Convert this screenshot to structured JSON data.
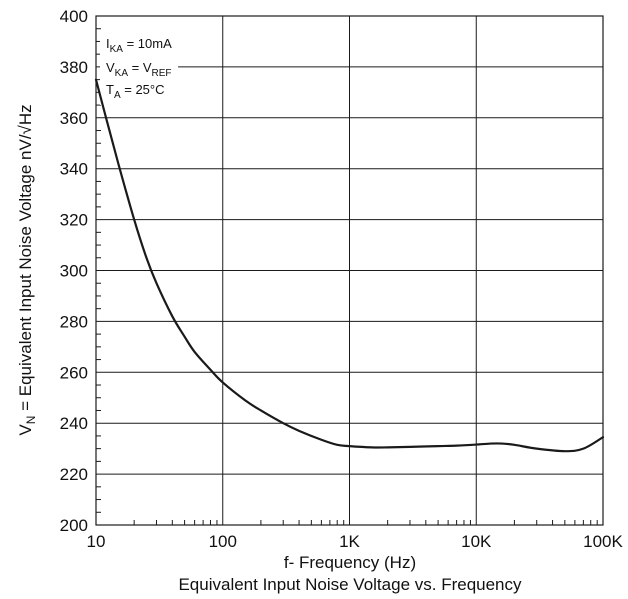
{
  "chart_data": {
    "type": "line",
    "title": "Equivalent Input Noise Voltage vs. Frequency",
    "xlabel": "f- Frequency (Hz)",
    "ylabel": "V_N = Equivalent Input Noise Voltage nV/√Hz",
    "ylabel_parts": {
      "main": "V",
      "sub": "N",
      "rest": " = Equivalent Input Noise Voltage nV/√Hz"
    },
    "x_scale": "log",
    "xlim": [
      10,
      100000
    ],
    "ylim": [
      200,
      400
    ],
    "x_ticks": [
      10,
      100,
      1000,
      10000,
      100000
    ],
    "x_tick_labels": [
      "10",
      "100",
      "1K",
      "10K",
      "100K"
    ],
    "y_ticks": [
      200,
      220,
      240,
      260,
      280,
      300,
      320,
      340,
      360,
      380,
      400
    ],
    "y_tick_labels": [
      "200",
      "220",
      "240",
      "260",
      "280",
      "300",
      "320",
      "340",
      "360",
      "380",
      "400"
    ],
    "grid": true,
    "conditions": [
      {
        "main": "I",
        "sub": "KA",
        "rest": " = 10mA"
      },
      {
        "main": "V",
        "sub": "KA",
        "rest": " = V",
        "sub2": "REF"
      },
      {
        "main": "T",
        "sub": "A",
        "rest": " = 25°C"
      }
    ],
    "series": [
      {
        "x": [
          10,
          12,
          15,
          20,
          25,
          30,
          40,
          50,
          60,
          80,
          100,
          150,
          200,
          300,
          400,
          600,
          800,
          1000,
          1500,
          2000,
          3000,
          5000,
          7000,
          10000,
          13000,
          16000,
          20000,
          30000,
          50000,
          70000,
          100000
        ],
        "y": [
          375,
          360,
          342,
          320,
          305,
          295,
          282,
          274,
          268,
          261,
          256,
          249,
          245,
          240,
          237,
          233.5,
          231.5,
          231,
          230.5,
          230.5,
          230.7,
          231,
          231.2,
          231.6,
          232,
          232,
          231.5,
          230,
          229,
          230,
          234.5
        ]
      }
    ],
    "colors": {
      "line": "#1a1a1a",
      "grid": "#1a1a1a",
      "text": "#111111"
    }
  }
}
